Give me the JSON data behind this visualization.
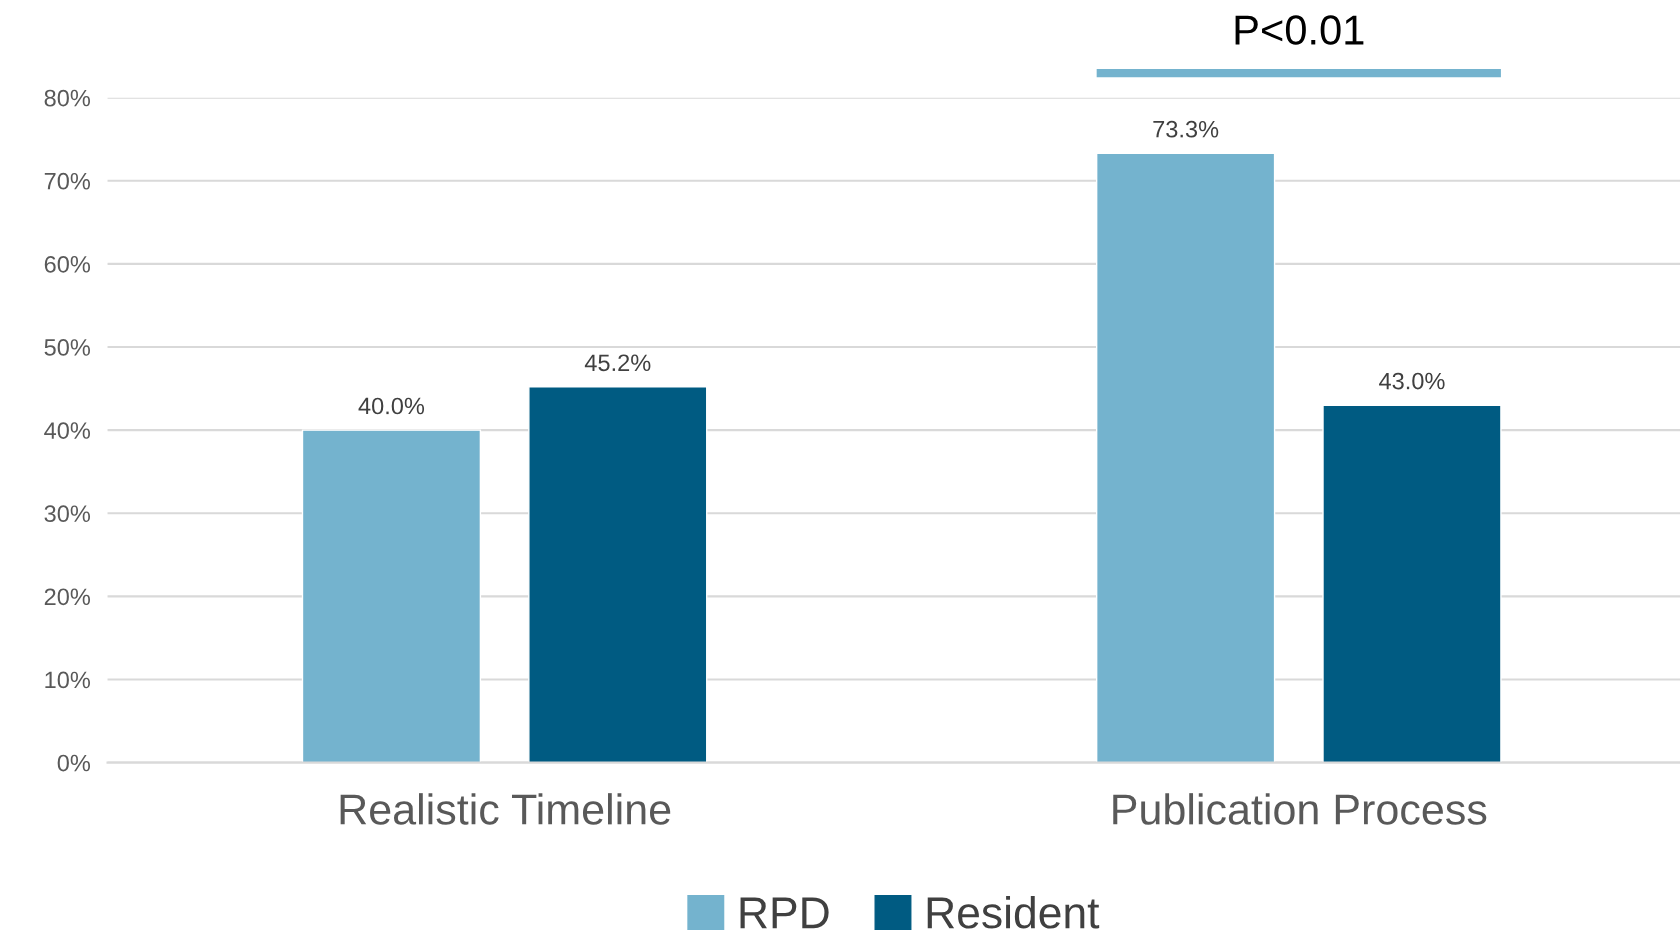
{
  "chart_data": {
    "type": "bar",
    "categories": [
      "Realistic Timeline",
      "Publication Process"
    ],
    "series": [
      {
        "name": "RPD",
        "color": "#74b3ce",
        "values": [
          40.0,
          73.3
        ],
        "value_labels": [
          "40.0%",
          "73.3%"
        ]
      },
      {
        "name": "Resident",
        "color": "#005b82",
        "values": [
          45.2,
          43.0
        ],
        "value_labels": [
          "45.2%",
          "43.0%"
        ]
      }
    ],
    "ylim": [
      0,
      80
    ],
    "yticks": [
      {
        "value": 0,
        "label": "0%"
      },
      {
        "value": 10,
        "label": "10%"
      },
      {
        "value": 20,
        "label": "20%"
      },
      {
        "value": 30,
        "label": "30%"
      },
      {
        "value": 40,
        "label": "40%"
      },
      {
        "value": 50,
        "label": "50%"
      },
      {
        "value": 60,
        "label": "60%"
      },
      {
        "value": 70,
        "label": "70%"
      },
      {
        "value": 80,
        "label": "80%"
      }
    ],
    "grid": "y",
    "legend": "bottom",
    "annotations": [
      "P<0.01"
    ]
  }
}
